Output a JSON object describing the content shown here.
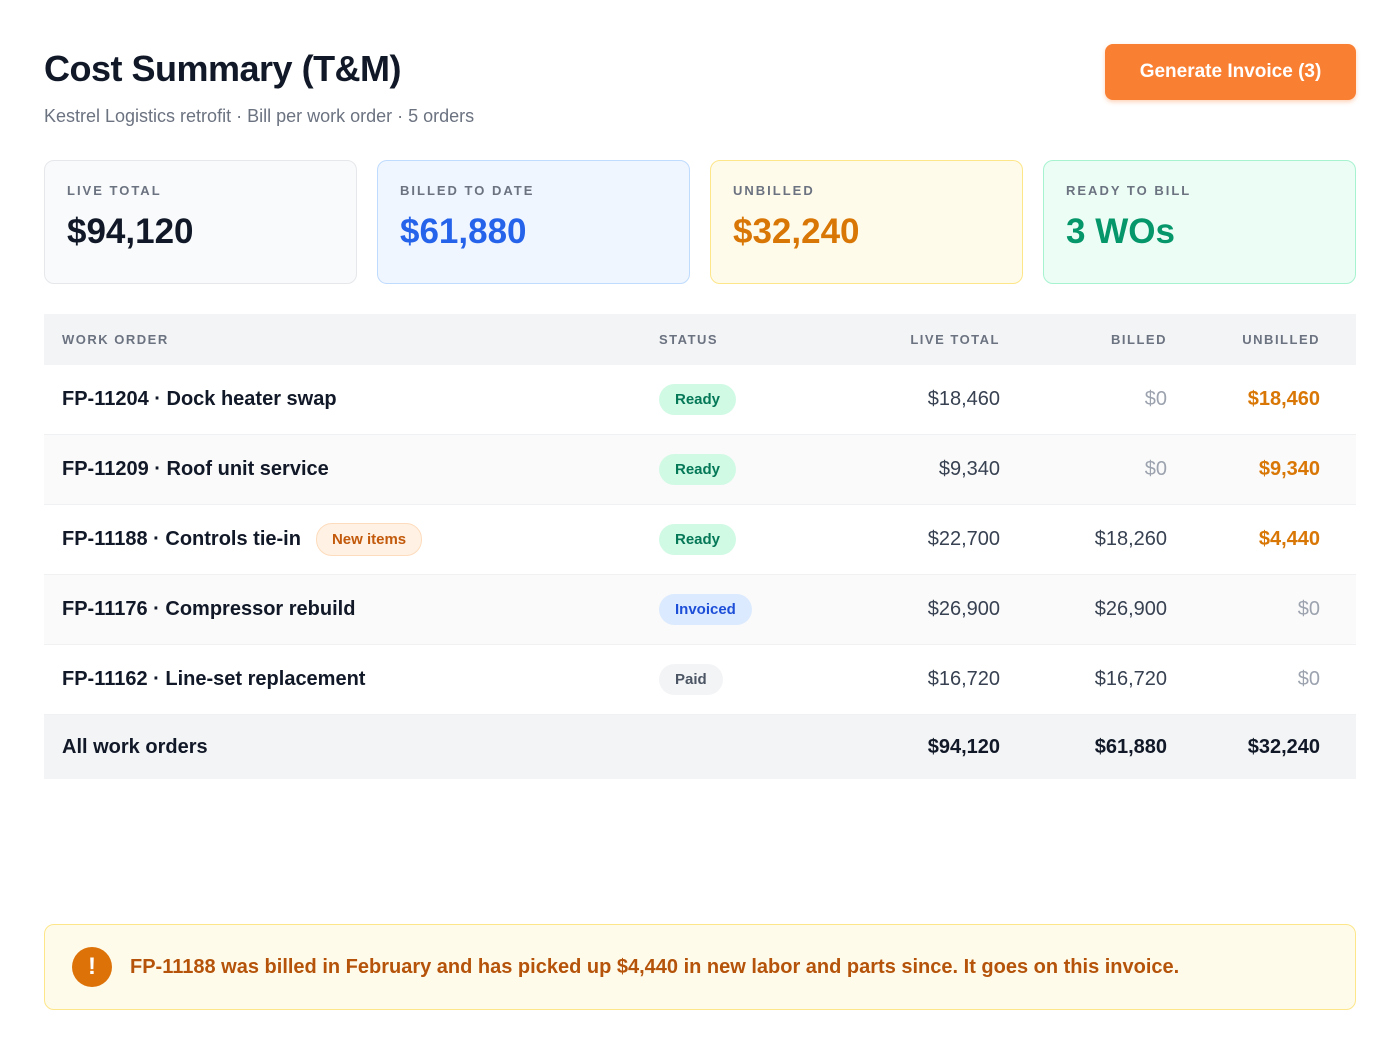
{
  "header": {
    "title": "Cost Summary (T&M)",
    "subtitle": "Kestrel Logistics retrofit · Bill per work order · 5 orders",
    "generate_button": "Generate Invoice (3)"
  },
  "summary": [
    {
      "label": "LIVE TOTAL",
      "value": "$94,120",
      "color": "#111827"
    },
    {
      "label": "BILLED TO DATE",
      "value": "$61,880",
      "color": "#2563eb"
    },
    {
      "label": "UNBILLED",
      "value": "$32,240",
      "color": "#d97706"
    },
    {
      "label": "READY TO BILL",
      "value": "3 WOs",
      "color": "#059669"
    }
  ],
  "table": {
    "columns": [
      "WORK ORDER",
      "STATUS",
      "LIVE TOTAL",
      "BILLED",
      "UNBILLED"
    ],
    "rows": [
      {
        "work_order": "FP-11204 · Dock heater swap",
        "tag": "",
        "status": "Ready",
        "live_total": "$18,460",
        "billed": "$0",
        "unbilled": "$18,460"
      },
      {
        "work_order": "FP-11209 · Roof unit service",
        "tag": "",
        "status": "Ready",
        "live_total": "$9,340",
        "billed": "$0",
        "unbilled": "$9,340"
      },
      {
        "work_order": "FP-11188 · Controls tie-in",
        "tag": "New items",
        "status": "Ready",
        "live_total": "$22,700",
        "billed": "$18,260",
        "unbilled": "$4,440"
      },
      {
        "work_order": "FP-11176 · Compressor rebuild",
        "tag": "",
        "status": "Invoiced",
        "live_total": "$26,900",
        "billed": "$26,900",
        "unbilled": "$0"
      },
      {
        "work_order": "FP-11162 · Line-set replacement",
        "tag": "",
        "status": "Paid",
        "live_total": "$16,720",
        "billed": "$16,720",
        "unbilled": "$0"
      }
    ],
    "footer": {
      "label": "All work orders",
      "live_total": "$94,120",
      "billed": "$61,880",
      "unbilled": "$32,240"
    }
  },
  "alert": {
    "icon": "exclamation-icon",
    "glyph": "!",
    "text": "FP-11188 was billed in February and has picked up $4,440 in new labor and parts since. It goes on this invoice."
  }
}
